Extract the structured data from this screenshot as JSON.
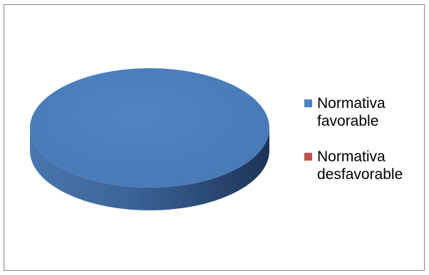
{
  "chart_data": {
    "type": "pie",
    "title": "",
    "categories": [
      "Normativa favorable",
      "Normativa desfavorable"
    ],
    "values": [
      100,
      0
    ],
    "colors": [
      "#4F81BD",
      "#C0504D"
    ],
    "style": "3d",
    "legend": "right"
  },
  "legend": {
    "items": [
      {
        "line1": "Normativa",
        "line2": "favorable",
        "color": "#4F81BD"
      },
      {
        "line1": "Normativa",
        "line2": "desfavorable",
        "color": "#C0504D"
      }
    ]
  }
}
